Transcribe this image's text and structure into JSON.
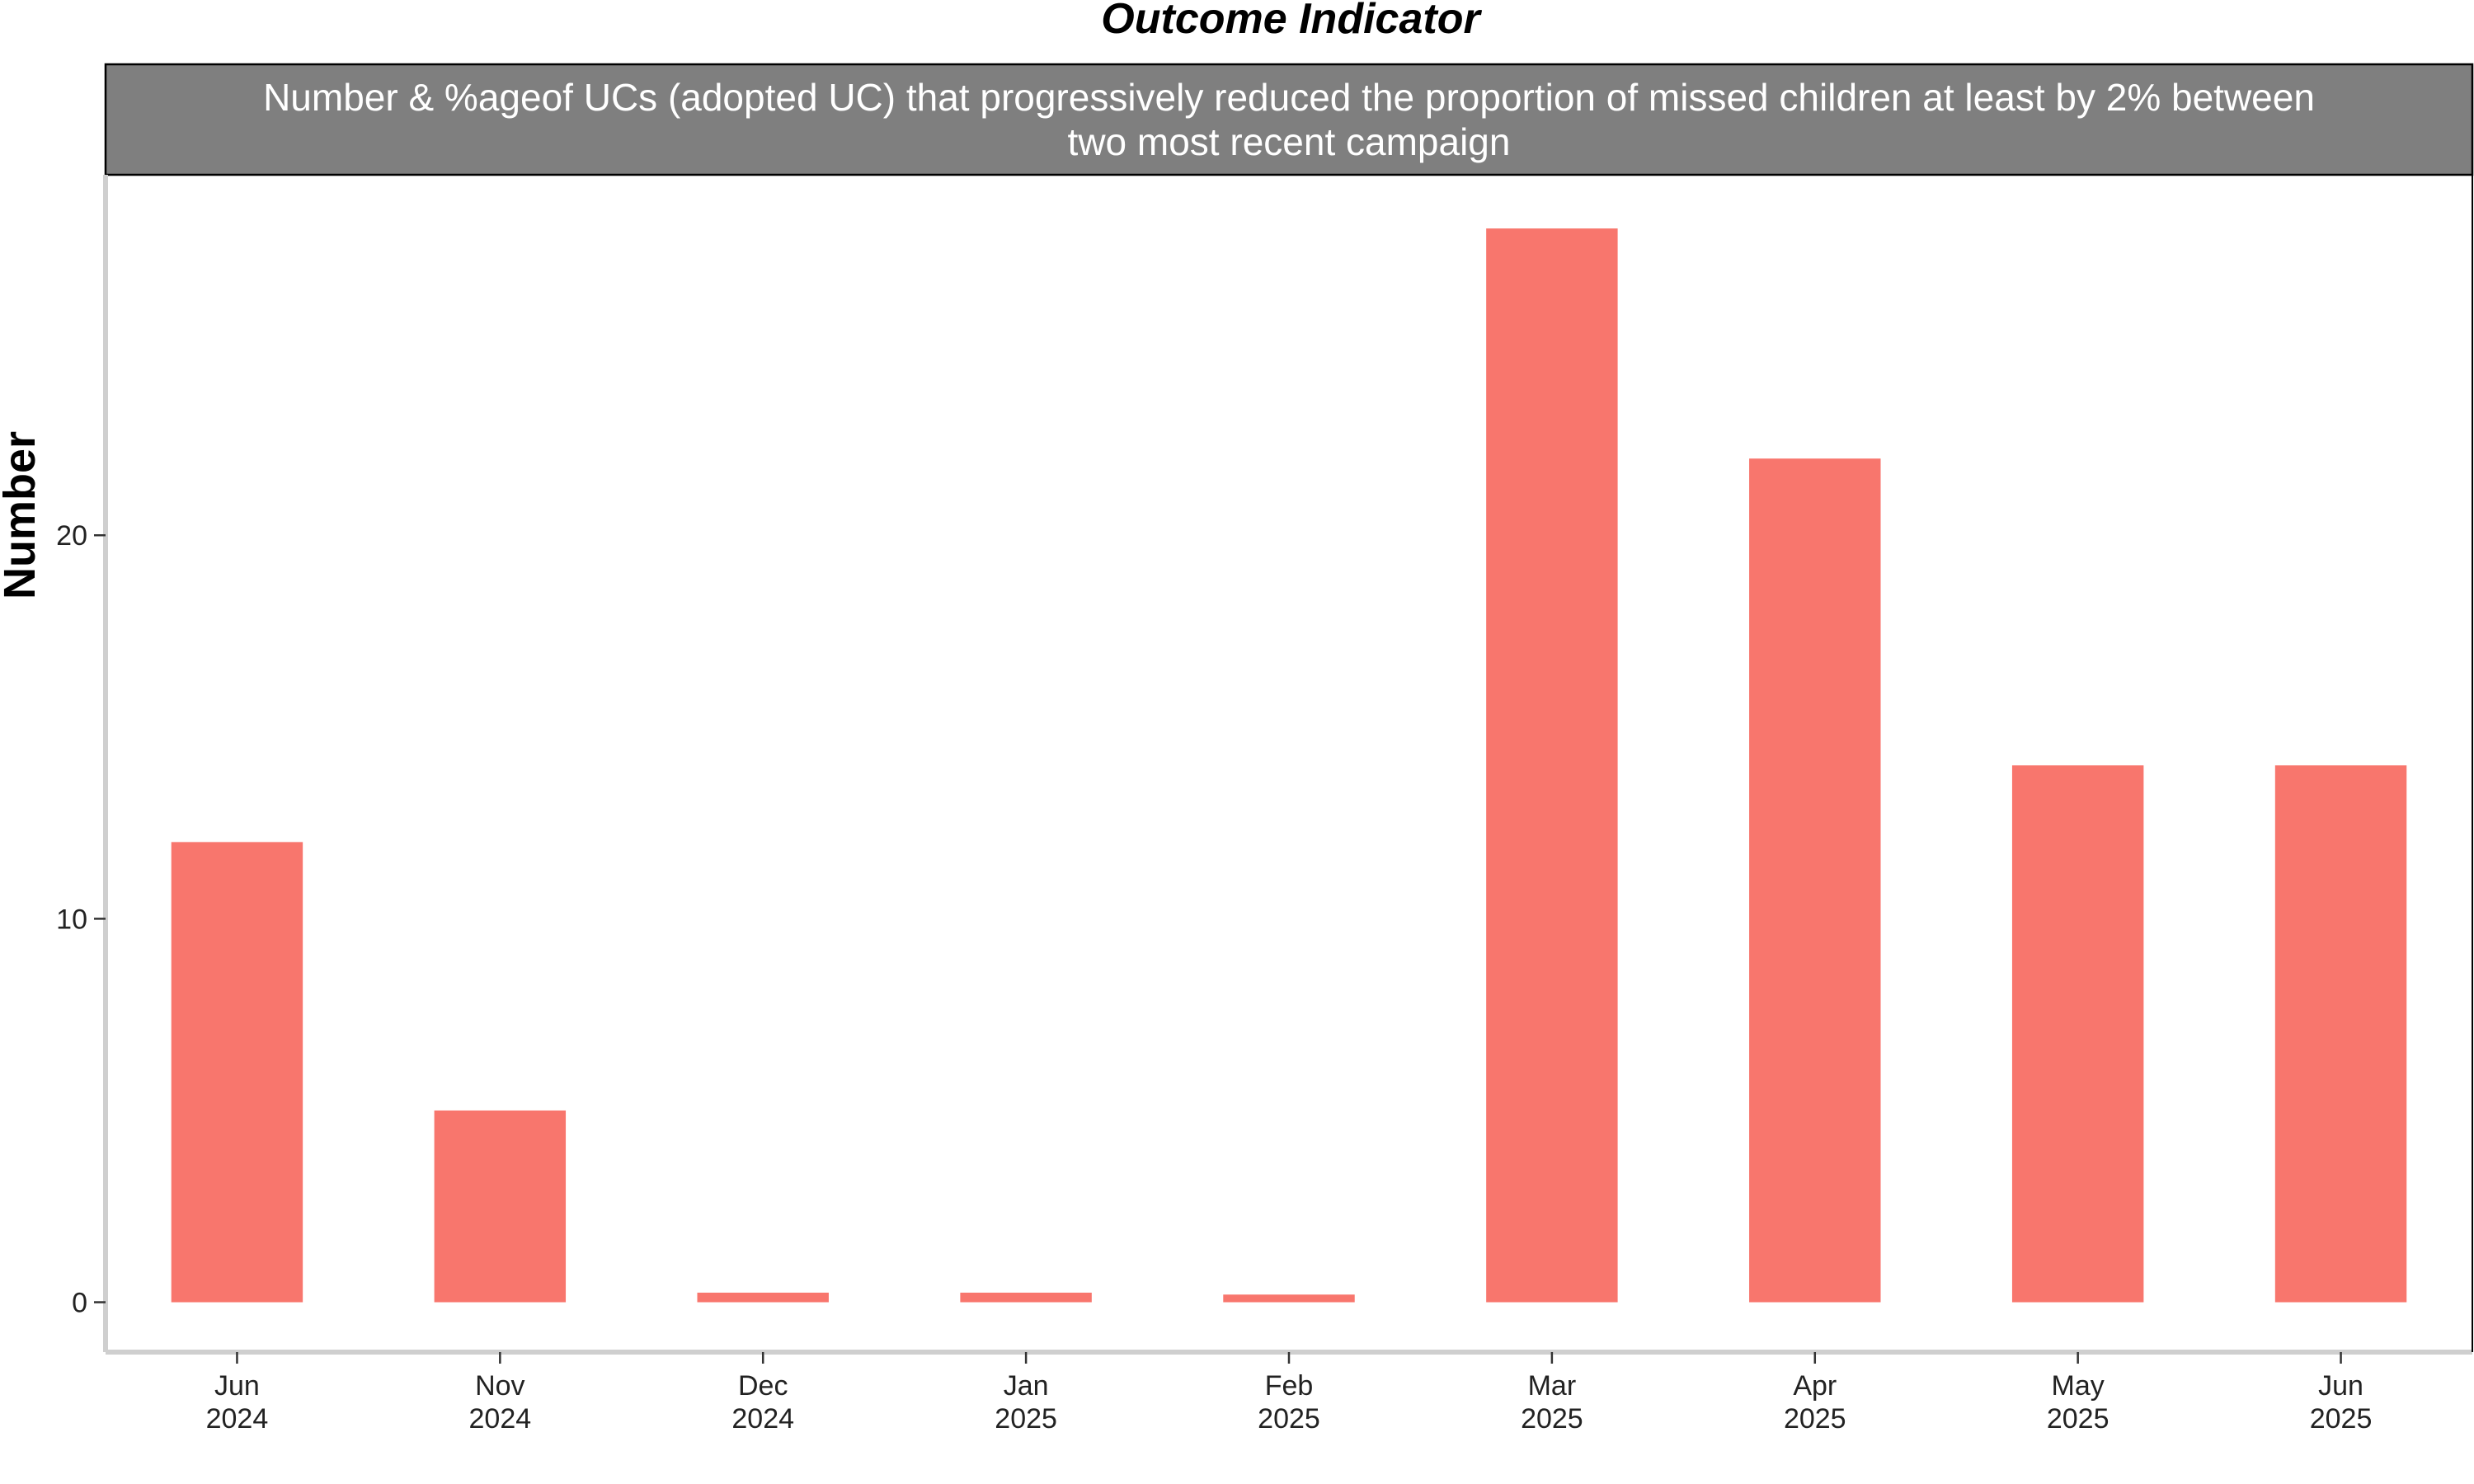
{
  "chart_data": {
    "type": "bar",
    "title": "Outcome Indicator",
    "facet_label": "Number & %ageof UCs (adopted UC) that progressively reduced the proportion of missed children at least by 2% between two most recent campaign",
    "facet_label_lines": [
      "Number & %ageof UCs (adopted UC) that progressively reduced the proportion of missed children at least by 2% between",
      "two most recent campaign"
    ],
    "xlabel": "",
    "ylabel": "Number",
    "categories": [
      [
        "Jun",
        "2024"
      ],
      [
        "Nov",
        "2024"
      ],
      [
        "Dec",
        "2024"
      ],
      [
        "Jan",
        "2025"
      ],
      [
        "Feb",
        "2025"
      ],
      [
        "Mar",
        "2025"
      ],
      [
        "Apr",
        "2025"
      ],
      [
        "May",
        "2025"
      ],
      [
        "Jun",
        "2025"
      ]
    ],
    "values": [
      12,
      5,
      0.25,
      0.25,
      0.2,
      28,
      22,
      14,
      14
    ],
    "yticks": [
      0,
      10,
      20
    ],
    "ylim": [
      -1.3,
      29.4
    ],
    "bar_color": "#F8766D",
    "strip_color": "#7F7F7F",
    "grid": false,
    "legend": "none"
  }
}
